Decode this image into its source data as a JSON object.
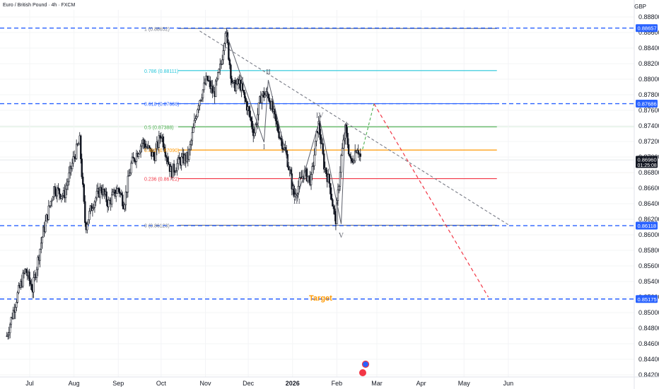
{
  "header": {
    "symbol": "Euro / British Pound · 4h · FXCM",
    "currency": "GBP"
  },
  "chart_data": {
    "type": "candlestick",
    "y_axis": {
      "range": [
        0.842,
        0.8892
      ],
      "ticks": [
        "0.88800",
        "0.88600",
        "0.88400",
        "0.88200",
        "0.88000",
        "0.87800",
        "0.87600",
        "0.87400",
        "0.87200",
        "0.87000",
        "0.86800",
        "0.86600",
        "0.86400",
        "0.86200",
        "0.86000",
        "0.85800",
        "0.85600",
        "0.85400",
        "0.85200",
        "0.85000",
        "0.84800",
        "0.84600",
        "0.84400",
        "0.84200"
      ]
    },
    "x_axis": {
      "labels": [
        {
          "text": "Jul",
          "date": "2025-07-01"
        },
        {
          "text": "Aug",
          "date": "2025-08-01"
        },
        {
          "text": "Sep",
          "date": "2025-09-01"
        },
        {
          "text": "Oct",
          "date": "2025-10-01"
        },
        {
          "text": "Nov",
          "date": "2025-11-01"
        },
        {
          "text": "Dec",
          "date": "2025-12-01"
        },
        {
          "text": "2026",
          "date": "2026-01-01"
        },
        {
          "text": "Feb",
          "date": "2026-02-01"
        },
        {
          "text": "Mar",
          "date": "2026-03-01"
        },
        {
          "text": "Apr",
          "date": "2026-04-01"
        },
        {
          "text": "May",
          "date": "2026-05-01"
        },
        {
          "text": "Jun",
          "date": "2026-06-01"
        }
      ]
    },
    "price_path": [
      [
        "2025-06-15",
        0.847
      ],
      [
        "2025-06-22",
        0.852
      ],
      [
        "2025-06-28",
        0.8555
      ],
      [
        "2025-07-03",
        0.853
      ],
      [
        "2025-07-10",
        0.86
      ],
      [
        "2025-07-18",
        0.866
      ],
      [
        "2025-07-25",
        0.865
      ],
      [
        "2025-08-01",
        0.87
      ],
      [
        "2025-08-05",
        0.872
      ],
      [
        "2025-08-09",
        0.861
      ],
      [
        "2025-08-14",
        0.864
      ],
      [
        "2025-08-20",
        0.866
      ],
      [
        "2025-08-25",
        0.864
      ],
      [
        "2025-09-01",
        0.866
      ],
      [
        "2025-09-05",
        0.864
      ],
      [
        "2025-09-10",
        0.869
      ],
      [
        "2025-09-18",
        0.872
      ],
      [
        "2025-09-26",
        0.87
      ],
      [
        "2025-10-01",
        0.873
      ],
      [
        "2025-10-08",
        0.868
      ],
      [
        "2025-10-14",
        0.8695
      ],
      [
        "2025-10-20",
        0.87
      ],
      [
        "2025-10-27",
        0.877
      ],
      [
        "2025-11-02",
        0.88
      ],
      [
        "2025-11-07",
        0.878
      ],
      [
        "2025-11-12",
        0.882
      ],
      [
        "2025-11-15",
        0.8865
      ],
      [
        "2025-11-20",
        0.879
      ],
      [
        "2025-11-25",
        0.8795
      ],
      [
        "2025-12-01",
        0.876
      ],
      [
        "2025-12-05",
        0.873
      ],
      [
        "2025-12-10",
        0.878
      ],
      [
        "2025-12-15",
        0.878
      ],
      [
        "2025-12-20",
        0.8745
      ],
      [
        "2025-12-28",
        0.87
      ],
      [
        "2026-01-02",
        0.865
      ],
      [
        "2026-01-09",
        0.868
      ],
      [
        "2026-01-14",
        0.867
      ],
      [
        "2026-01-19",
        0.8745
      ],
      [
        "2026-01-23",
        0.869
      ],
      [
        "2026-01-27",
        0.8665
      ],
      [
        "2026-01-31",
        0.8615
      ],
      [
        "2026-02-04",
        0.87
      ],
      [
        "2026-02-07",
        0.8735
      ],
      [
        "2026-02-11",
        0.869
      ],
      [
        "2026-02-15",
        0.8715
      ],
      [
        "2026-02-18",
        0.8696
      ]
    ],
    "wave_labels": [
      {
        "text": "I",
        "date": "2025-12-12",
        "price": 0.87135
      },
      {
        "text": "II",
        "date": "2025-12-15",
        "price": 0.881
      },
      {
        "text": "III",
        "date": "2026-01-04",
        "price": 0.86435
      },
      {
        "text": "IV",
        "date": "2026-01-20",
        "price": 0.8754
      },
      {
        "text": "V",
        "date": "2026-02-04",
        "price": 0.86
      }
    ],
    "fib_levels": [
      {
        "ratio": "1",
        "price": 0.88652,
        "label": "1 (0.88652)",
        "color": "#787b86"
      },
      {
        "ratio": "0.786",
        "price": 0.88111,
        "label": "0.786 (0.88111)",
        "color": "#26c6da"
      },
      {
        "ratio": "0.618",
        "price": 0.87686,
        "label": "0.618 (0.87686)",
        "color": "#2962ff"
      },
      {
        "ratio": "0.5",
        "price": 0.87388,
        "label": "0.5 (0.87388)",
        "color": "#4caf50"
      },
      {
        "ratio": "0.382",
        "price": 0.8709,
        "label": "0.382 (0.87090)",
        "color": "#ff9800"
      },
      {
        "ratio": "0.236",
        "price": 0.86722,
        "label": "0.236 (0.86722)",
        "color": "#f23645"
      },
      {
        "ratio": "0",
        "price": 0.86123,
        "label": "0 (0.86123)",
        "color": "#787b86"
      }
    ],
    "horizontal_levels": [
      {
        "price": 0.88657,
        "label": "0.88657",
        "color": "#2962ff"
      },
      {
        "price": 0.87686,
        "label": "0.87686",
        "color": "#2962ff"
      },
      {
        "price": 0.86118,
        "label": "0.86118",
        "color": "#2962ff"
      },
      {
        "price": 0.85175,
        "label": "0.85175",
        "color": "#2962ff"
      }
    ],
    "current_price": {
      "value": "0.86960",
      "countdown": "01:25:08",
      "color": "#131722"
    },
    "target": {
      "text": "Target",
      "date": "2026-02-02",
      "price": 0.8519,
      "color": "#ff9800"
    },
    "trendline": {
      "from": [
        "2025-10-28",
        0.8862
      ],
      "to": [
        "2026-06-01",
        0.8613
      ],
      "color": "#787b86"
    },
    "projection": {
      "green": {
        "from": [
          "2026-02-19",
          0.871
        ],
        "to": [
          "2026-02-27",
          0.87685
        ],
        "color": "#4caf50"
      },
      "red": {
        "from": [
          "2026-02-27",
          0.87685
        ],
        "to": [
          "2026-05-18",
          0.852
        ],
        "color": "#f23645"
      }
    },
    "grid": true,
    "legend": "none"
  },
  "colors": {
    "up": "#131722",
    "down": "#131722",
    "level_tag": "#2962ff",
    "price_tag": "#131722"
  }
}
